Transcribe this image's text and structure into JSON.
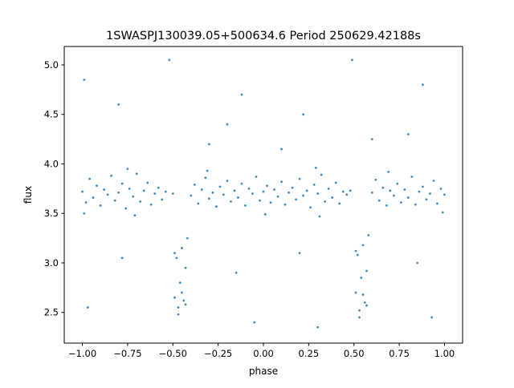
{
  "chart_data": {
    "type": "scatter",
    "title": "1SWASPJ130039.05+500634.6 Period 250629.42188s",
    "xlabel": "phase",
    "ylabel": "flux",
    "xlim": [
      -1.1,
      1.1
    ],
    "ylim": [
      2.19,
      5.186
    ],
    "xticks": [
      -1.0,
      -0.75,
      -0.5,
      -0.25,
      0.0,
      0.25,
      0.5,
      0.75,
      1.0
    ],
    "xtick_labels": [
      "−1.00",
      "−0.75",
      "−0.50",
      "−0.25",
      "0.00",
      "0.25",
      "0.50",
      "0.75",
      "1.00"
    ],
    "yticks": [
      2.5,
      3.0,
      3.5,
      4.0,
      4.5,
      5.0
    ],
    "ytick_labels": [
      "2.5",
      "3.0",
      "3.5",
      "4.0",
      "4.5",
      "5.0"
    ],
    "grid": false,
    "color": "#1f77b4",
    "points": [
      [
        -1.0,
        3.72
      ],
      [
        -0.98,
        3.61
      ],
      [
        -0.96,
        3.85
      ],
      [
        -0.94,
        3.66
      ],
      [
        -0.92,
        3.78
      ],
      [
        -0.9,
        3.58
      ],
      [
        -0.88,
        3.74
      ],
      [
        -0.86,
        3.69
      ],
      [
        -0.84,
        3.88
      ],
      [
        -0.82,
        3.63
      ],
      [
        -0.8,
        3.71
      ],
      [
        -0.78,
        3.8
      ],
      [
        -0.76,
        3.55
      ],
      [
        -0.74,
        3.75
      ],
      [
        -0.72,
        3.67
      ],
      [
        -0.7,
        3.9
      ],
      [
        -0.68,
        3.62
      ],
      [
        -0.66,
        3.73
      ],
      [
        -0.64,
        3.81
      ],
      [
        -0.62,
        3.59
      ],
      [
        -0.6,
        3.7
      ],
      [
        -0.58,
        3.76
      ],
      [
        -0.56,
        3.64
      ],
      [
        -0.54,
        3.72
      ],
      [
        -0.4,
        3.68
      ],
      [
        -0.38,
        3.79
      ],
      [
        -0.36,
        3.6
      ],
      [
        -0.34,
        3.74
      ],
      [
        -0.32,
        3.86
      ],
      [
        -0.3,
        3.65
      ],
      [
        -0.28,
        3.71
      ],
      [
        -0.26,
        3.57
      ],
      [
        -0.24,
        3.77
      ],
      [
        -0.22,
        3.69
      ],
      [
        -0.2,
        3.83
      ],
      [
        -0.18,
        3.62
      ],
      [
        -0.16,
        3.73
      ],
      [
        -0.14,
        3.66
      ],
      [
        -0.12,
        3.8
      ],
      [
        -0.1,
        3.58
      ],
      [
        -0.08,
        3.75
      ],
      [
        -0.06,
        3.7
      ],
      [
        -0.04,
        3.87
      ],
      [
        -0.02,
        3.63
      ],
      [
        0.0,
        3.72
      ],
      [
        0.02,
        3.78
      ],
      [
        0.04,
        3.61
      ],
      [
        0.06,
        3.74
      ],
      [
        0.08,
        3.67
      ],
      [
        0.1,
        3.82
      ],
      [
        0.12,
        3.59
      ],
      [
        0.14,
        3.71
      ],
      [
        0.16,
        3.76
      ],
      [
        0.18,
        3.64
      ],
      [
        0.2,
        3.85
      ],
      [
        0.22,
        3.68
      ],
      [
        0.24,
        3.73
      ],
      [
        0.26,
        3.56
      ],
      [
        0.28,
        3.79
      ],
      [
        0.3,
        3.7
      ],
      [
        0.32,
        3.89
      ],
      [
        0.34,
        3.62
      ],
      [
        0.36,
        3.75
      ],
      [
        0.38,
        3.66
      ],
      [
        0.4,
        3.81
      ],
      [
        0.42,
        3.6
      ],
      [
        0.44,
        3.72
      ],
      [
        0.46,
        3.69
      ],
      [
        0.6,
        3.71
      ],
      [
        0.62,
        3.84
      ],
      [
        0.64,
        3.63
      ],
      [
        0.66,
        3.76
      ],
      [
        0.68,
        3.58
      ],
      [
        0.7,
        3.73
      ],
      [
        0.72,
        3.68
      ],
      [
        0.74,
        3.8
      ],
      [
        0.76,
        3.61
      ],
      [
        0.78,
        3.74
      ],
      [
        0.8,
        3.66
      ],
      [
        0.82,
        3.87
      ],
      [
        0.84,
        3.59
      ],
      [
        0.86,
        3.72
      ],
      [
        0.88,
        3.77
      ],
      [
        0.9,
        3.64
      ],
      [
        0.92,
        3.7
      ],
      [
        0.94,
        3.83
      ],
      [
        0.96,
        3.6
      ],
      [
        0.98,
        3.75
      ],
      [
        1.0,
        3.69
      ],
      [
        -0.99,
        3.5
      ],
      [
        -0.75,
        3.95
      ],
      [
        -0.71,
        3.48
      ],
      [
        -0.31,
        3.93
      ],
      [
        0.01,
        3.49
      ],
      [
        0.29,
        3.96
      ],
      [
        0.31,
        3.47
      ],
      [
        0.69,
        3.92
      ],
      [
        0.99,
        3.51
      ],
      [
        -0.5,
        3.7
      ],
      [
        0.48,
        3.73
      ],
      [
        -0.49,
        2.65
      ],
      [
        -0.48,
        3.05
      ],
      [
        -0.47,
        2.55
      ],
      [
        -0.46,
        2.8
      ],
      [
        -0.45,
        3.15
      ],
      [
        -0.44,
        2.62
      ],
      [
        -0.43,
        2.95
      ],
      [
        -0.42,
        3.25
      ],
      [
        -0.47,
        2.48
      ],
      [
        -0.45,
        2.7
      ],
      [
        -0.49,
        3.1
      ],
      [
        -0.43,
        2.58
      ],
      [
        0.51,
        2.7
      ],
      [
        0.52,
        3.08
      ],
      [
        0.53,
        2.52
      ],
      [
        0.54,
        2.85
      ],
      [
        0.55,
        3.18
      ],
      [
        0.56,
        2.6
      ],
      [
        0.57,
        2.92
      ],
      [
        0.58,
        3.28
      ],
      [
        0.53,
        2.45
      ],
      [
        0.55,
        2.68
      ],
      [
        0.51,
        3.12
      ],
      [
        0.57,
        2.57
      ],
      [
        -0.99,
        4.85
      ],
      [
        -0.8,
        4.6
      ],
      [
        -0.52,
        5.05
      ],
      [
        -0.2,
        4.4
      ],
      [
        -0.12,
        4.7
      ],
      [
        -0.05,
        2.4
      ],
      [
        0.22,
        4.5
      ],
      [
        0.3,
        2.35
      ],
      [
        0.49,
        5.05
      ],
      [
        0.8,
        4.3
      ],
      [
        0.88,
        4.8
      ],
      [
        0.93,
        2.45
      ],
      [
        -0.78,
        3.05
      ],
      [
        -0.15,
        2.9
      ],
      [
        0.2,
        3.1
      ],
      [
        0.85,
        3.0
      ],
      [
        -0.3,
        4.2
      ],
      [
        0.6,
        4.25
      ],
      [
        -0.97,
        2.55
      ],
      [
        0.1,
        4.15
      ]
    ]
  }
}
